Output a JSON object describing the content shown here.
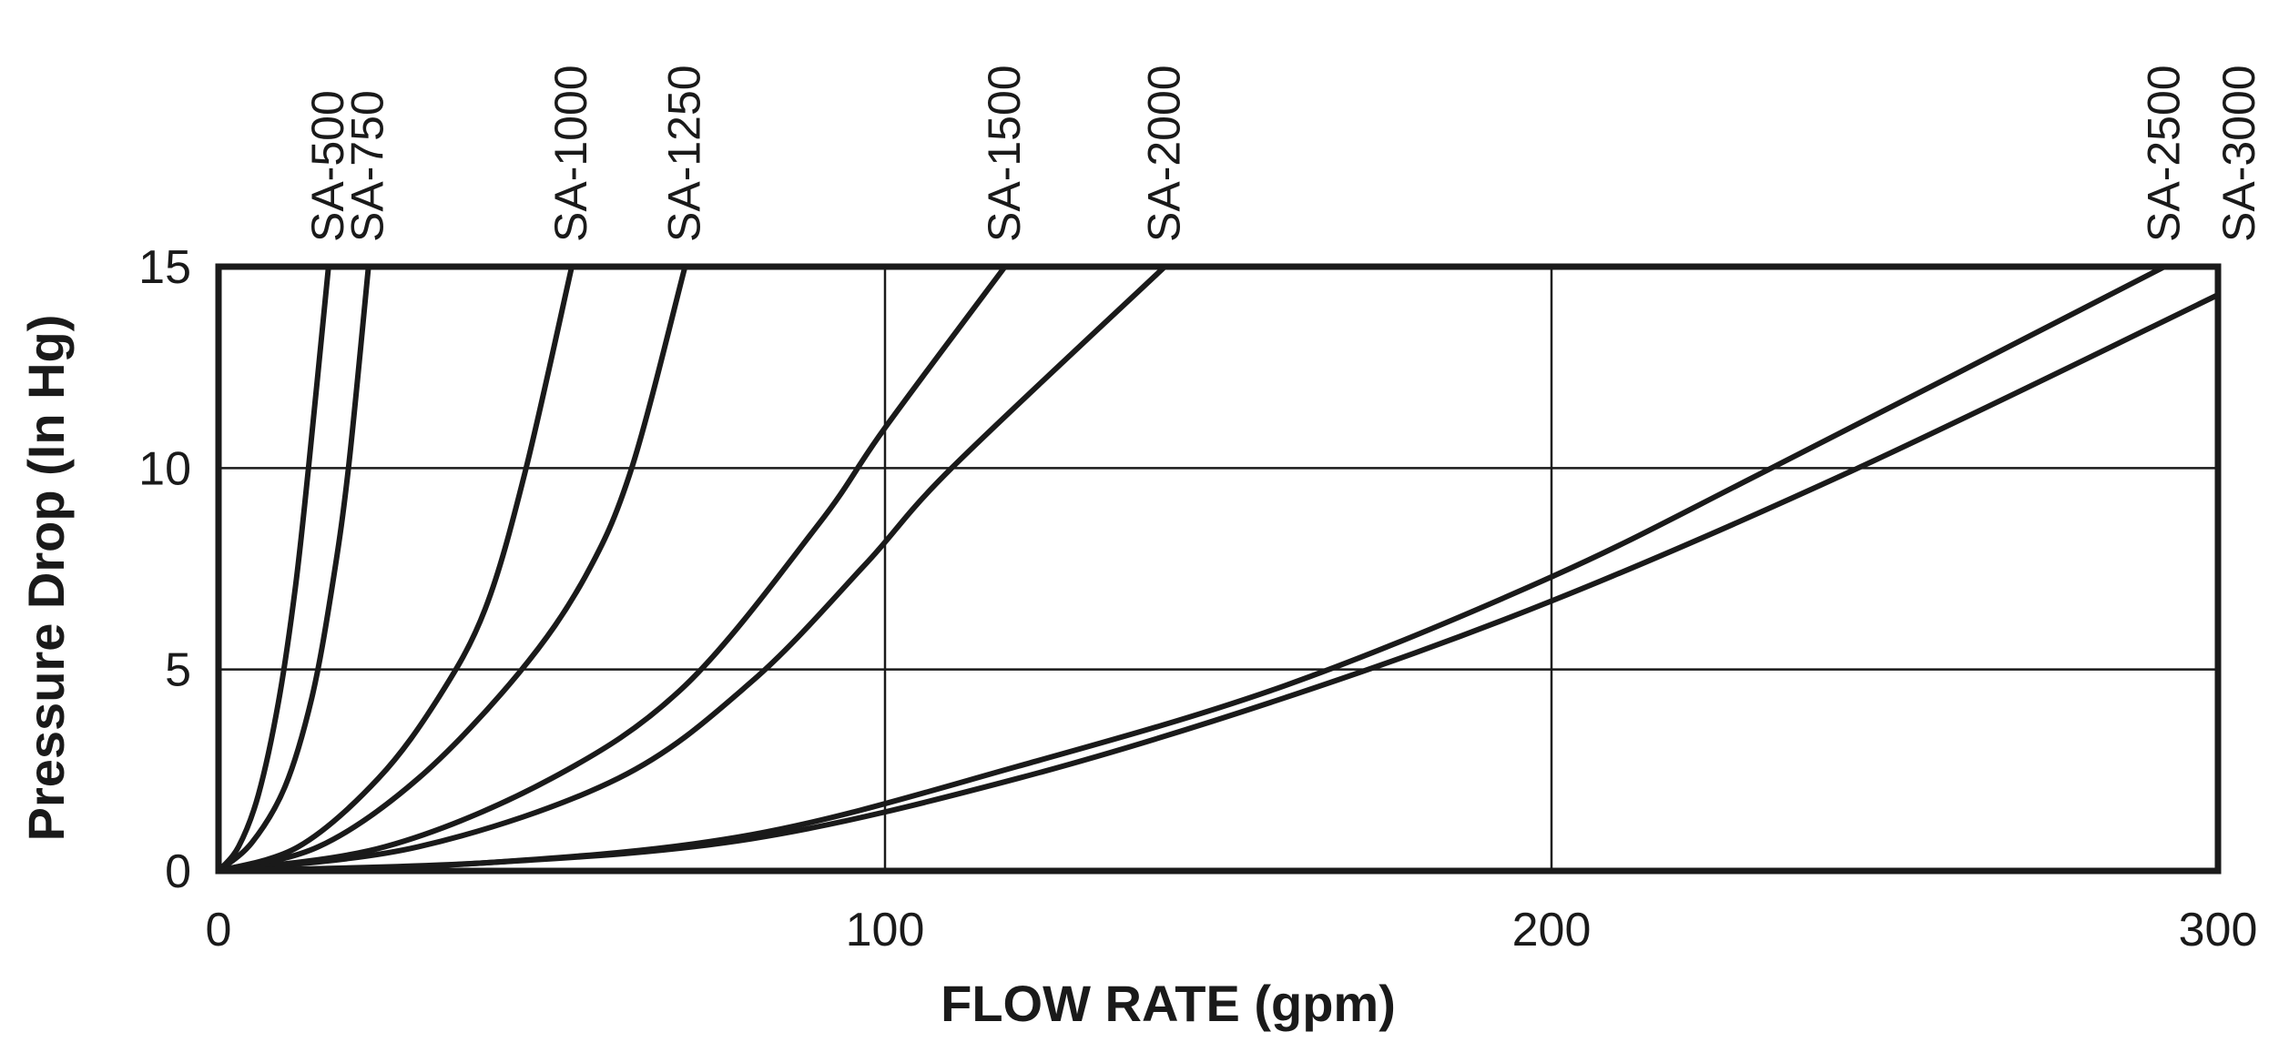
{
  "chart_data": {
    "type": "line",
    "title": "",
    "xlabel": "FLOW RATE (gpm)",
    "ylabel": "Pressure Drop (In Hg)",
    "xlim": [
      0,
      300
    ],
    "ylim": [
      0,
      15
    ],
    "xticks": [
      0,
      100,
      200,
      300
    ],
    "yticks": [
      0,
      5,
      10,
      15
    ],
    "grid": true,
    "legend": "series labels above top axis",
    "line_color": "#1a1a1a",
    "series": [
      {
        "name": "SA-500",
        "x": [
          0,
          3,
          6,
          9,
          11.5,
          13.5,
          16.5
        ],
        "y": [
          0,
          0.6,
          1.9,
          4.2,
          7,
          10,
          15
        ]
      },
      {
        "name": "SA-750",
        "x": [
          0,
          5,
          10,
          14,
          17,
          19.5,
          22.5
        ],
        "y": [
          0,
          0.7,
          2.1,
          4.3,
          7,
          10,
          15
        ]
      },
      {
        "name": "SA-1000",
        "x": [
          0,
          12,
          24,
          33,
          40,
          46,
          53
        ],
        "y": [
          0,
          0.6,
          2.3,
          4.3,
          6.5,
          9.9,
          15
        ]
      },
      {
        "name": "SA-1250",
        "x": [
          0,
          15,
          30,
          45,
          55,
          62,
          70
        ],
        "y": [
          0,
          0.6,
          2.3,
          4.9,
          7.3,
          10,
          15
        ]
      },
      {
        "name": "SA-1500",
        "x": [
          0,
          25,
          50,
          70,
          90,
          100,
          118
        ],
        "y": [
          0,
          0.6,
          2.3,
          4.6,
          8.6,
          11,
          15
        ]
      },
      {
        "name": "SA-2000",
        "x": [
          0,
          30,
          60,
          80,
          97,
          110,
          142
        ],
        "y": [
          0,
          0.6,
          2.3,
          4.7,
          7.6,
          10,
          15
        ]
      },
      {
        "name": "SA-2500",
        "x": [
          0,
          40,
          80,
          120,
          160,
          200,
          233,
          292
        ],
        "y": [
          0,
          0.2,
          0.9,
          2.6,
          4.6,
          7.3,
          10,
          15
        ]
      },
      {
        "name": "SA-3000",
        "x": [
          0,
          40,
          80,
          120,
          160,
          200,
          246,
          300
        ],
        "y": [
          0,
          0.2,
          0.8,
          2.3,
          4.3,
          6.7,
          10,
          14.3
        ]
      }
    ]
  }
}
